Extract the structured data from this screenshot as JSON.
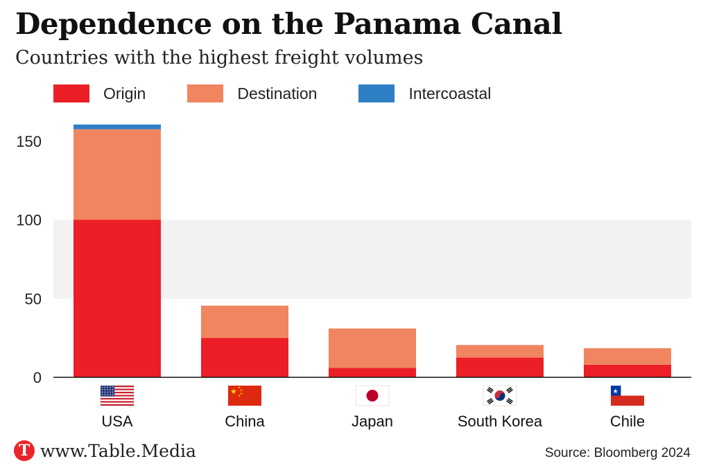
{
  "title": "Dependence on the Panama Canal",
  "subtitle": "Countries with the highest freight volumes",
  "legend": [
    {
      "label": "Origin",
      "color": "#ec1e27"
    },
    {
      "label": "Destination",
      "color": "#f08560"
    },
    {
      "label": "Intercoastal",
      "color": "#2f7fc4"
    }
  ],
  "footer": {
    "logo_letter": "T",
    "site": "www.Table.Media",
    "source": "Source: Bloomberg 2024"
  },
  "chart_data": {
    "type": "bar",
    "stacked": true,
    "title": "Dependence on the Panama Canal",
    "subtitle": "Countries with the highest freight volumes",
    "categories": [
      "USA",
      "China",
      "Japan",
      "South Korea",
      "Chile"
    ],
    "series": [
      {
        "name": "Origin",
        "color": "#ec1e27",
        "values": [
          100,
          25,
          6,
          12.5,
          8
        ]
      },
      {
        "name": "Destination",
        "color": "#f08560",
        "values": [
          57.5,
          20.5,
          25,
          8,
          10.5
        ]
      },
      {
        "name": "Intercoastal",
        "color": "#2f7fc4",
        "values": [
          3,
          0,
          0,
          0,
          0
        ]
      }
    ],
    "ylim": [
      0,
      150
    ],
    "yticks": [
      0,
      50,
      100,
      150
    ],
    "xlabel": "",
    "ylabel": "",
    "flags": [
      "us-flag-icon",
      "china-flag-icon",
      "japan-flag-icon",
      "south-korea-flag-icon",
      "chile-flag-icon"
    ]
  }
}
